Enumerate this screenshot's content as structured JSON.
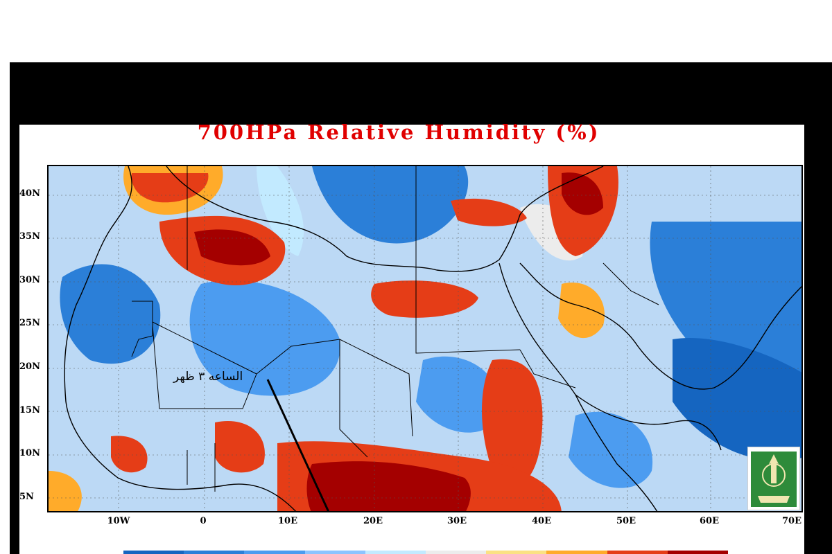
{
  "title": "700HPa Relative Humidity (%)",
  "annotation": "الساعه ٣ ظهر",
  "lat_labels": [
    "40N",
    "35N",
    "30N",
    "25N",
    "20N",
    "15N",
    "10N",
    "5N"
  ],
  "lon_labels": [
    "10W",
    "0",
    "10E",
    "20E",
    "30E",
    "40E",
    "50E",
    "60E",
    "70E"
  ],
  "colorbar_colors": [
    "#1565c0",
    "#2b7fd8",
    "#4c9cf0",
    "#8cc4ff",
    "#c2eaff",
    "#ececec",
    "#fbe184",
    "#ffab2a",
    "#e53d17",
    "#a40000"
  ],
  "logo_icon": "university-emblem-icon"
}
